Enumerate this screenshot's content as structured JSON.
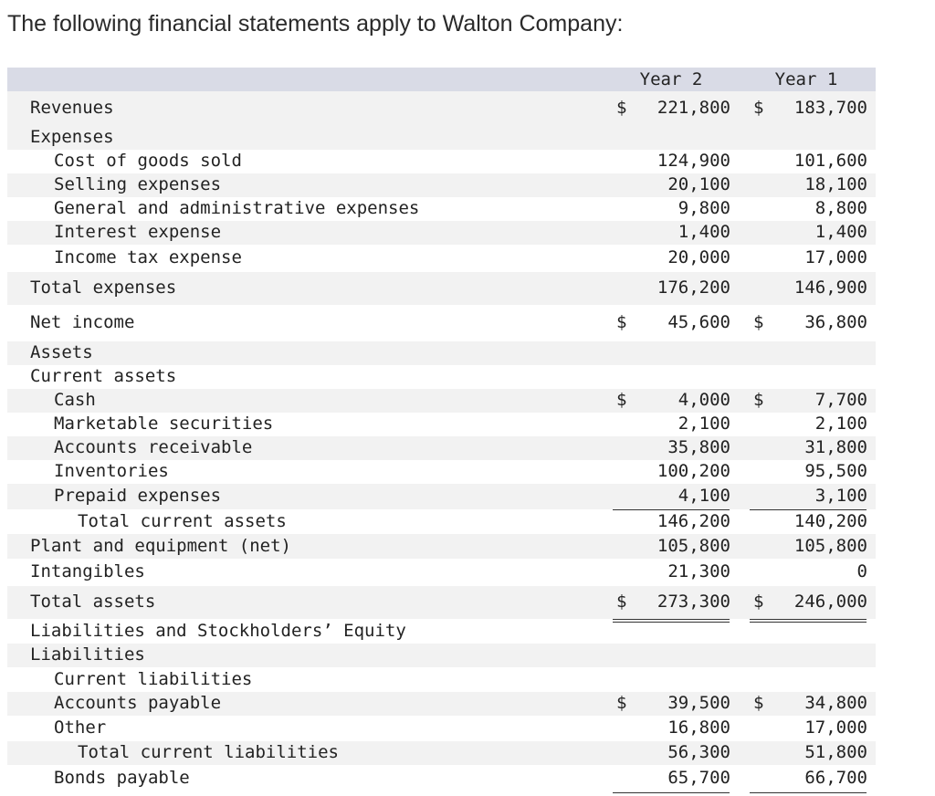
{
  "intro": "The following financial statements apply to Walton Company:",
  "headers": {
    "year2": "Year 2",
    "year1": "Year 1"
  },
  "rows": [
    {
      "label": "Revenues",
      "y2": "221,800",
      "y1": "183,700",
      "cur": true
    },
    {
      "label": "Expenses"
    },
    {
      "label": "Cost of goods sold",
      "y2": "124,900",
      "y1": "101,600"
    },
    {
      "label": "Selling expenses",
      "y2": "20,100",
      "y1": "18,100"
    },
    {
      "label": "General and administrative expenses",
      "y2": "9,800",
      "y1": "8,800"
    },
    {
      "label": "Interest expense",
      "y2": "1,400",
      "y1": "1,400"
    },
    {
      "label": "Income tax expense",
      "y2": "20,000",
      "y1": "17,000"
    },
    {
      "label": "Total expenses",
      "y2": "176,200",
      "y1": "146,900"
    },
    {
      "label": "Net income",
      "y2": "45,600",
      "y1": "36,800",
      "cur": true
    },
    {
      "label": "Assets"
    },
    {
      "label": "Current assets"
    },
    {
      "label": "Cash",
      "y2": "4,000",
      "y1": "7,700",
      "cur": true
    },
    {
      "label": "Marketable securities",
      "y2": "2,100",
      "y1": "2,100"
    },
    {
      "label": "Accounts receivable",
      "y2": "35,800",
      "y1": "31,800"
    },
    {
      "label": "Inventories",
      "y2": "100,200",
      "y1": "95,500"
    },
    {
      "label": "Prepaid expenses",
      "y2": "4,100",
      "y1": "3,100"
    },
    {
      "label": "Total current assets",
      "y2": "146,200",
      "y1": "140,200"
    },
    {
      "label": "Plant and equipment (net)",
      "y2": "105,800",
      "y1": "105,800"
    },
    {
      "label": "Intangibles",
      "y2": "21,300",
      "y1": "0"
    },
    {
      "label": "Total assets",
      "y2": "273,300",
      "y1": "246,000",
      "cur": true
    },
    {
      "label": "Liabilities and Stockholders’ Equity"
    },
    {
      "label": "Liabilities"
    },
    {
      "label": "Current liabilities"
    },
    {
      "label": "Accounts payable",
      "y2": "39,500",
      "y1": "34,800",
      "cur": true
    },
    {
      "label": "Other",
      "y2": "16,800",
      "y1": "17,000"
    },
    {
      "label": "Total current liabilities",
      "y2": "56,300",
      "y1": "51,800"
    },
    {
      "label": "Bonds payable",
      "y2": "65,700",
      "y1": "66,700"
    }
  ],
  "currency_symbol": "$"
}
